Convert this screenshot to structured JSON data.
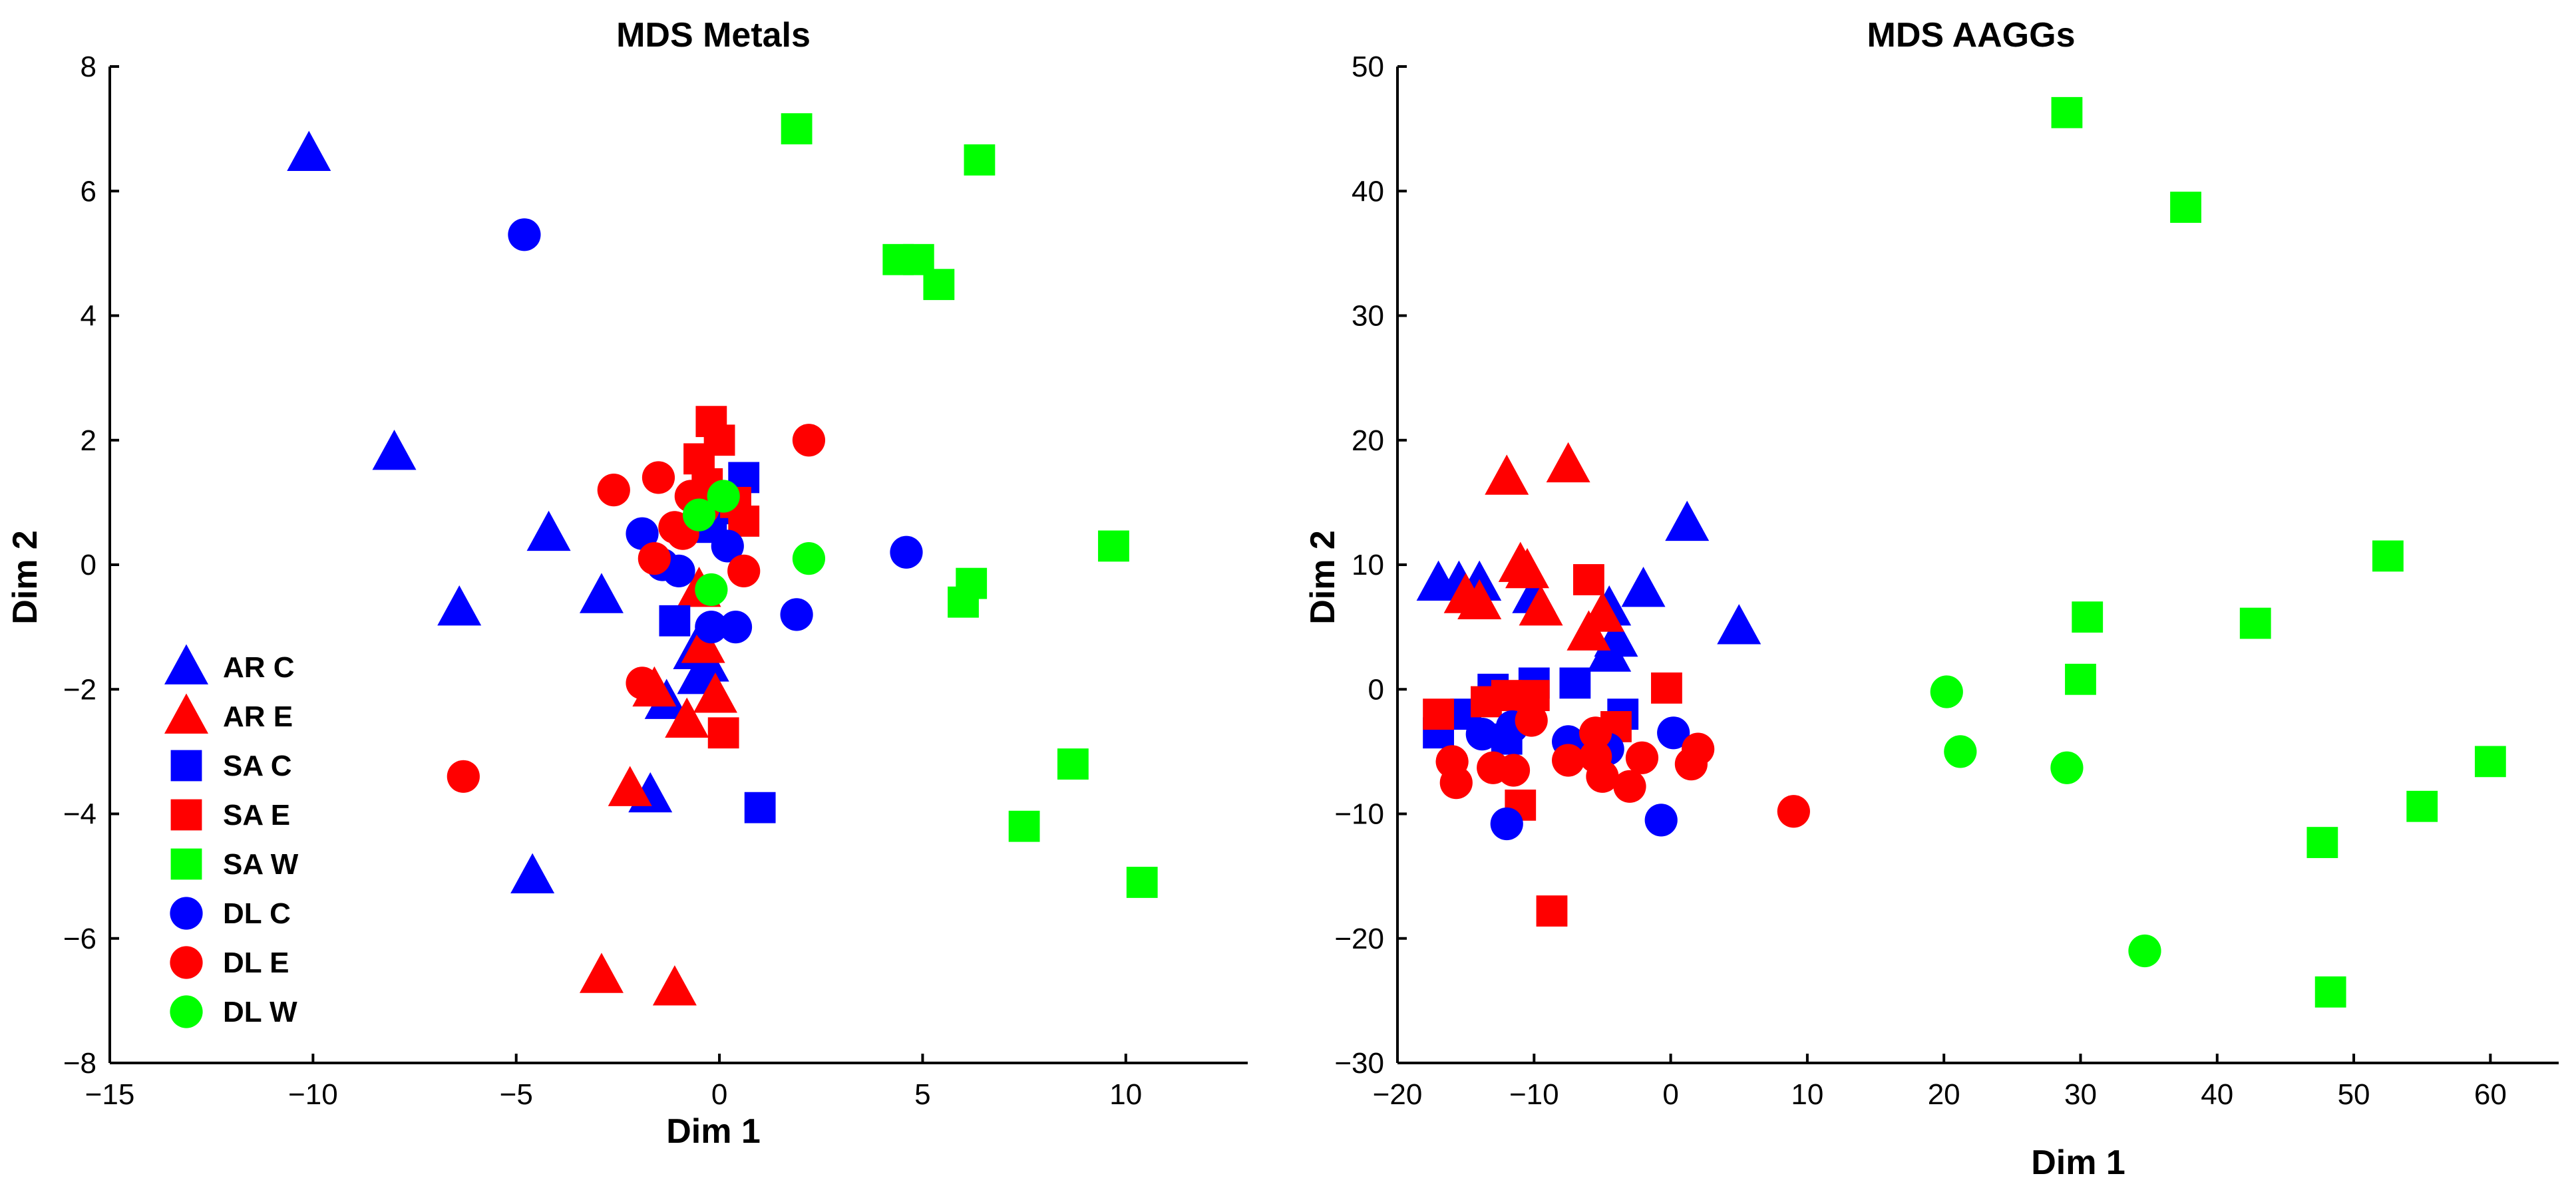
{
  "colors": {
    "blue": "#0000ff",
    "red": "#ff0000",
    "green": "#00ff00"
  },
  "chart_data": [
    {
      "type": "scatter",
      "title": "MDS Metals",
      "xlabel": "Dim 1",
      "ylabel": "Dim 2",
      "xlim": [
        -15,
        13
      ],
      "ylim": [
        -8,
        8
      ],
      "xticks": [
        -15,
        -10,
        -5,
        0,
        5,
        10
      ],
      "yticks": [
        -8,
        -6,
        -4,
        -2,
        0,
        2,
        4,
        6,
        8
      ],
      "legend": {
        "placement": "lower-left",
        "entries": [
          {
            "label": "AR C",
            "marker": "triangle",
            "color": "blue"
          },
          {
            "label": "AR E",
            "marker": "triangle",
            "color": "red"
          },
          {
            "label": "SA C",
            "marker": "square",
            "color": "blue"
          },
          {
            "label": "SA E",
            "marker": "square",
            "color": "red"
          },
          {
            "label": "SA W",
            "marker": "square",
            "color": "green"
          },
          {
            "label": "DL C",
            "marker": "circle",
            "color": "blue"
          },
          {
            "label": "DL E",
            "marker": "circle",
            "color": "red"
          },
          {
            "label": "DL W",
            "marker": "circle",
            "color": "green"
          }
        ]
      },
      "series": [
        {
          "name": "AR C",
          "marker": "triangle",
          "color": "blue",
          "points": [
            [
              -10.1,
              6.6
            ],
            [
              -8.0,
              1.8
            ],
            [
              -6.4,
              -0.7
            ],
            [
              -4.2,
              0.5
            ],
            [
              -2.9,
              -0.5
            ],
            [
              -1.7,
              -3.7
            ],
            [
              -4.6,
              -5.0
            ],
            [
              -1.3,
              -2.2
            ],
            [
              -0.6,
              -1.4
            ],
            [
              -0.5,
              -1.8
            ],
            [
              -0.3,
              -1.6
            ]
          ]
        },
        {
          "name": "AR E",
          "marker": "triangle",
          "color": "red",
          "points": [
            [
              -2.2,
              -3.6
            ],
            [
              -2.9,
              -6.6
            ],
            [
              -1.1,
              -6.8
            ],
            [
              -0.8,
              -2.5
            ],
            [
              -0.1,
              -2.1
            ],
            [
              -0.4,
              -1.3
            ],
            [
              -1.6,
              -2.0
            ],
            [
              -0.5,
              -0.4
            ]
          ]
        },
        {
          "name": "SA C",
          "marker": "square",
          "color": "blue",
          "points": [
            [
              1.0,
              -3.9
            ],
            [
              -1.1,
              -0.9
            ],
            [
              0.6,
              1.4
            ],
            [
              0.3,
              0.9
            ],
            [
              -0.2,
              0.6
            ]
          ]
        },
        {
          "name": "SA E",
          "marker": "square",
          "color": "red",
          "points": [
            [
              -0.2,
              2.3
            ],
            [
              0.0,
              2.0
            ],
            [
              -0.5,
              1.7
            ],
            [
              0.6,
              0.7
            ],
            [
              0.1,
              -2.7
            ],
            [
              -0.3,
              1.3
            ],
            [
              0.4,
              1.0
            ]
          ]
        },
        {
          "name": "SA W",
          "marker": "square",
          "color": "green",
          "points": [
            [
              1.9,
              7.0
            ],
            [
              6.4,
              6.5
            ],
            [
              4.4,
              4.9
            ],
            [
              4.9,
              4.9
            ],
            [
              5.4,
              4.5
            ],
            [
              9.7,
              0.3
            ],
            [
              6.2,
              -0.3
            ],
            [
              6.0,
              -0.6
            ],
            [
              8.7,
              -3.2
            ],
            [
              7.5,
              -4.2
            ],
            [
              10.4,
              -5.1
            ]
          ]
        },
        {
          "name": "DL C",
          "marker": "circle",
          "color": "blue",
          "points": [
            [
              -4.8,
              5.3
            ],
            [
              -1.9,
              0.5
            ],
            [
              -1.4,
              0.0
            ],
            [
              -1.0,
              -0.1
            ],
            [
              -0.2,
              -1.0
            ],
            [
              0.4,
              -1.0
            ],
            [
              1.9,
              -0.8
            ],
            [
              4.6,
              0.2
            ],
            [
              0.2,
              0.3
            ]
          ]
        },
        {
          "name": "DL E",
          "marker": "circle",
          "color": "red",
          "points": [
            [
              2.2,
              2.0
            ],
            [
              -2.6,
              1.2
            ],
            [
              -1.5,
              1.4
            ],
            [
              -1.1,
              0.6
            ],
            [
              -0.7,
              1.1
            ],
            [
              -0.9,
              0.5
            ],
            [
              -0.4,
              0.9
            ],
            [
              -1.6,
              0.1
            ],
            [
              0.6,
              -0.1
            ],
            [
              -1.9,
              -1.9
            ],
            [
              -6.3,
              -3.4
            ]
          ]
        },
        {
          "name": "DL W",
          "marker": "circle",
          "color": "green",
          "points": [
            [
              0.1,
              1.1
            ],
            [
              -0.5,
              0.8
            ],
            [
              -0.2,
              -0.4
            ],
            [
              2.2,
              0.1
            ]
          ]
        }
      ]
    },
    {
      "type": "scatter",
      "title": "MDS AAGGs",
      "xlabel": "Dim 1",
      "ylabel": "Dim 2",
      "xlim": [
        -20,
        65
      ],
      "ylim": [
        -30,
        50
      ],
      "xticks": [
        -20,
        -10,
        0,
        10,
        20,
        30,
        40,
        50,
        60
      ],
      "yticks": [
        -30,
        -20,
        -10,
        0,
        10,
        20,
        30,
        40,
        50
      ],
      "series": [
        {
          "name": "AR C",
          "marker": "triangle",
          "color": "blue",
          "points": [
            [
              -17,
              8.5
            ],
            [
              -15.5,
              8.5
            ],
            [
              -14,
              8.5
            ],
            [
              -10,
              7.5
            ],
            [
              -2,
              8
            ],
            [
              1.2,
              13.3
            ],
            [
              5,
              5
            ],
            [
              -4.5,
              6.5
            ],
            [
              -4,
              4
            ],
            [
              -4.5,
              2.8
            ]
          ]
        },
        {
          "name": "AR E",
          "marker": "triangle",
          "color": "red",
          "points": [
            [
              -12,
              17
            ],
            [
              -7.5,
              18
            ],
            [
              -11,
              10
            ],
            [
              -10.5,
              9.5
            ],
            [
              -15,
              7.5
            ],
            [
              -14,
              7
            ],
            [
              -9.5,
              6.5
            ],
            [
              -6,
              4.5
            ],
            [
              -5,
              6
            ]
          ]
        },
        {
          "name": "SA C",
          "marker": "square",
          "color": "blue",
          "points": [
            [
              -17,
              -3.5
            ],
            [
              -15,
              -2
            ],
            [
              -13,
              0
            ],
            [
              -10,
              0.5
            ],
            [
              -7,
              0.5
            ],
            [
              -12,
              -4
            ],
            [
              -3.5,
              -2
            ]
          ]
        },
        {
          "name": "SA E",
          "marker": "square",
          "color": "red",
          "points": [
            [
              -17,
              -2
            ],
            [
              -12,
              -0.5
            ],
            [
              -6,
              8.8
            ],
            [
              -10,
              -0.5
            ],
            [
              -0.3,
              0.1
            ],
            [
              -4,
              -3
            ],
            [
              -11,
              -9.3
            ],
            [
              -8.7,
              -17.8
            ],
            [
              -13.5,
              -1
            ]
          ]
        },
        {
          "name": "SA W",
          "marker": "square",
          "color": "green",
          "points": [
            [
              29,
              46.3
            ],
            [
              37.7,
              38.7
            ],
            [
              52.5,
              10.7
            ],
            [
              30.5,
              5.8
            ],
            [
              42.8,
              5.3
            ],
            [
              30,
              0.8
            ],
            [
              60,
              -5.8
            ],
            [
              55,
              -9.4
            ],
            [
              47.7,
              -12.3
            ],
            [
              48.3,
              -24.3
            ]
          ]
        },
        {
          "name": "DL C",
          "marker": "circle",
          "color": "blue",
          "points": [
            [
              -13.8,
              -3.6
            ],
            [
              -12,
              -10.8
            ],
            [
              -0.7,
              -10.5
            ],
            [
              0.2,
              -3.5
            ],
            [
              -11.6,
              -3
            ],
            [
              -7.5,
              -4.2
            ],
            [
              -4.6,
              -4.8
            ]
          ]
        },
        {
          "name": "DL E",
          "marker": "circle",
          "color": "red",
          "points": [
            [
              -16,
              -5.8
            ],
            [
              -15.7,
              -7.5
            ],
            [
              -13,
              -6.3
            ],
            [
              -11.5,
              -6.5
            ],
            [
              -10.2,
              -2.5
            ],
            [
              -7.5,
              -5.7
            ],
            [
              -5.5,
              -5.4
            ],
            [
              -5,
              -7
            ],
            [
              -3,
              -7.8
            ],
            [
              -2.1,
              -5.5
            ],
            [
              1.5,
              -6
            ],
            [
              2,
              -4.8
            ],
            [
              9,
              -9.8
            ],
            [
              -5.5,
              -3.5
            ]
          ]
        },
        {
          "name": "DL W",
          "marker": "circle",
          "color": "green",
          "points": [
            [
              20.2,
              -0.2
            ],
            [
              21.2,
              -5
            ],
            [
              29,
              -6.3
            ],
            [
              34.7,
              -21
            ]
          ]
        }
      ]
    }
  ]
}
